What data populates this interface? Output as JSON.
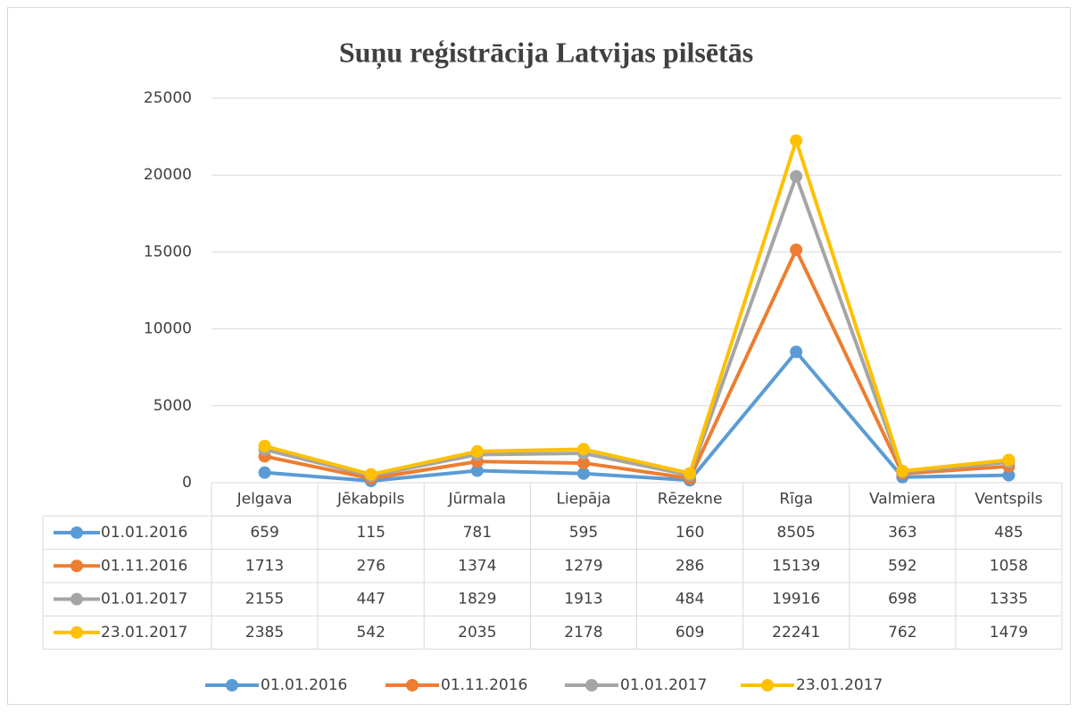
{
  "chart_data": {
    "type": "line",
    "title": "Suņu reģistrācija Latvijas pilsētās",
    "categories": [
      "Jelgava",
      "Jēkabpils",
      "Jūrmala",
      "Liepāja",
      "Rēzekne",
      "Rīga",
      "Valmiera",
      "Ventspils"
    ],
    "series": [
      {
        "name": "01.01.2016",
        "color": "#5b9bd5",
        "values": [
          659,
          115,
          781,
          595,
          160,
          8505,
          363,
          485
        ]
      },
      {
        "name": "01.11.2016",
        "color": "#ed7d31",
        "values": [
          1713,
          276,
          1374,
          1279,
          286,
          15139,
          592,
          1058
        ]
      },
      {
        "name": "01.01.2017",
        "color": "#a5a5a5",
        "values": [
          2155,
          447,
          1829,
          1913,
          484,
          19916,
          698,
          1335
        ]
      },
      {
        "name": "23.01.2017",
        "color": "#ffc000",
        "values": [
          2385,
          542,
          2035,
          2178,
          609,
          22241,
          762,
          1479
        ]
      }
    ],
    "ylim": [
      0,
      25000
    ],
    "yticks": [
      0,
      5000,
      10000,
      15000,
      20000,
      25000
    ],
    "grid": true,
    "legend": "bottom"
  }
}
